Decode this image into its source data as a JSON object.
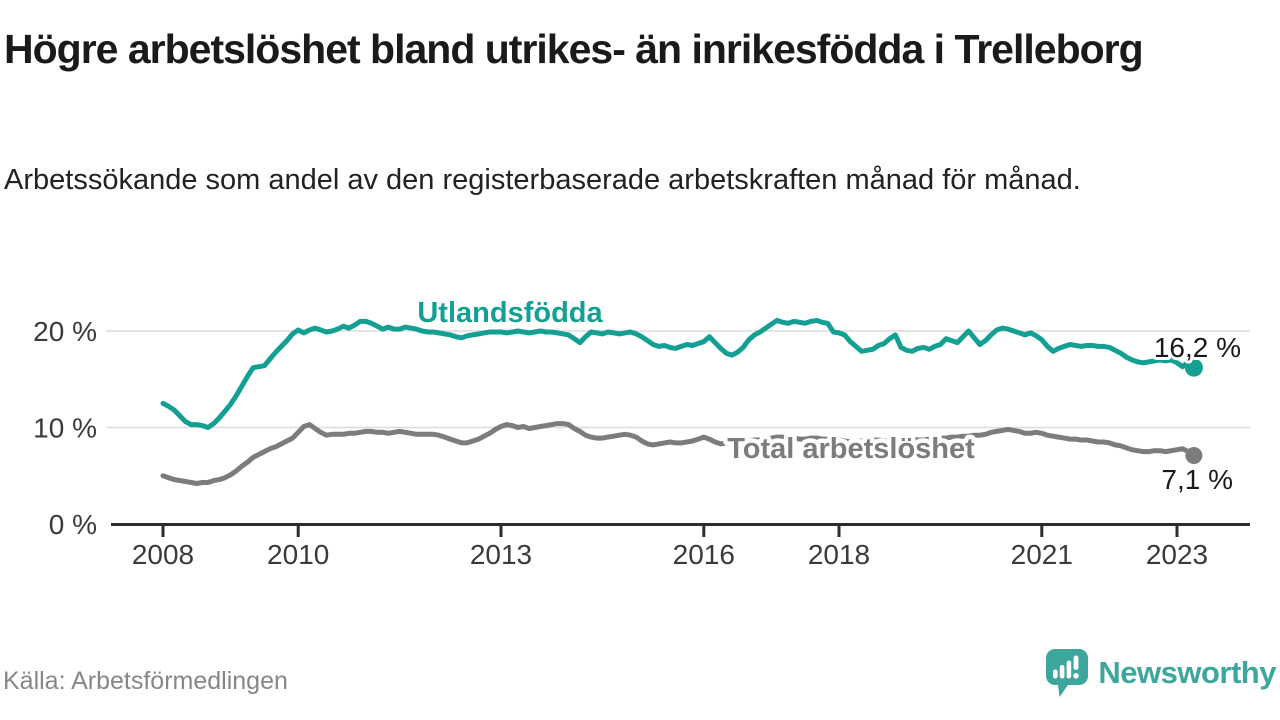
{
  "header": {
    "title": "Högre arbetslöshet bland utrikes- än inrikesfödda i Trelleborg",
    "subtitle": "Arbetssökande som andel av den registerbaserade arbetskraften månad för månad."
  },
  "footer": {
    "source": "Källa: Arbetsförmedlingen",
    "brand": "Newsworthy"
  },
  "colors": {
    "series_teal": "#13a093",
    "series_gray": "#7c7c7c",
    "grid": "#dcdcdc",
    "axis": "#2d2d2d",
    "tick_text": "#3a3a3a",
    "value_text": "#1a1a1a",
    "brand_teal": "#3da69d"
  },
  "chart_data": {
    "type": "line",
    "title": "Högre arbetslöshet bland utrikes- än inrikesfödda i Trelleborg",
    "xlabel": "",
    "ylabel": "Arbetssökande som andel av den registerbaserade arbetskraften",
    "x_start_year": 2008,
    "points_per_year": 12,
    "x_end_label": "2023-04",
    "x_tick_years": [
      2008,
      2010,
      2013,
      2016,
      2018,
      2021,
      2023
    ],
    "y_ticks": [
      {
        "value": 0,
        "label": "0 %"
      },
      {
        "value": 10,
        "label": "10 %"
      },
      {
        "value": 20,
        "label": "20 %"
      }
    ],
    "ylim": [
      0,
      23
    ],
    "grid": "horizontal",
    "legend_position": "inline-labels",
    "series": [
      {
        "name": "Utlandsfödda",
        "color": "#13a093",
        "end_label": "16,2 %",
        "end_value": 16.2,
        "values": [
          12.5,
          12.2,
          11.8,
          11.2,
          10.6,
          10.3,
          10.3,
          10.2,
          10.0,
          10.4,
          11.0,
          11.7,
          12.4,
          13.3,
          14.3,
          15.3,
          16.2,
          16.3,
          16.4,
          17.1,
          17.8,
          18.4,
          19.0,
          19.7,
          20.1,
          19.8,
          20.1,
          20.3,
          20.1,
          19.9,
          20.0,
          20.2,
          20.5,
          20.3,
          20.6,
          21.0,
          21.0,
          20.8,
          20.5,
          20.2,
          20.4,
          20.2,
          20.2,
          20.4,
          20.3,
          20.2,
          20.0,
          19.9,
          19.9,
          19.8,
          19.7,
          19.6,
          19.4,
          19.3,
          19.5,
          19.6,
          19.7,
          19.8,
          19.9,
          19.9,
          19.9,
          19.8,
          19.9,
          20.0,
          19.9,
          19.8,
          19.9,
          20.0,
          19.9,
          19.9,
          19.8,
          19.7,
          19.6,
          19.2,
          18.8,
          19.4,
          19.9,
          19.8,
          19.7,
          19.9,
          19.8,
          19.7,
          19.8,
          19.9,
          19.7,
          19.4,
          19.0,
          18.6,
          18.4,
          18.5,
          18.3,
          18.2,
          18.4,
          18.6,
          18.5,
          18.7,
          18.9,
          19.4,
          18.8,
          18.2,
          17.7,
          17.5,
          17.8,
          18.3,
          19.1,
          19.6,
          19.9,
          20.3,
          20.7,
          21.1,
          20.9,
          20.8,
          21.0,
          20.9,
          20.8,
          21.0,
          21.1,
          20.9,
          20.8,
          19.9,
          19.8,
          19.6,
          18.9,
          18.4,
          17.9,
          18.0,
          18.1,
          18.5,
          18.7,
          19.2,
          19.6,
          18.3,
          18.0,
          17.9,
          18.2,
          18.3,
          18.1,
          18.4,
          18.6,
          19.2,
          19.0,
          18.8,
          19.4,
          20.0,
          19.3,
          18.6,
          19.0,
          19.6,
          20.1,
          20.3,
          20.2,
          20.0,
          19.8,
          19.6,
          19.8,
          19.5,
          19.1,
          18.4,
          17.9,
          18.2,
          18.4,
          18.6,
          18.5,
          18.4,
          18.5,
          18.5,
          18.4,
          18.4,
          18.3,
          18.0,
          17.7,
          17.3,
          17.0,
          16.8,
          16.7,
          16.8,
          16.9,
          17.0,
          16.9,
          17.0,
          16.7,
          16.3,
          16.8,
          16.2
        ]
      },
      {
        "name": "Total arbetslöshet",
        "color": "#7c7c7c",
        "end_label": "7,1 %",
        "end_value": 7.1,
        "values": [
          5.0,
          4.8,
          4.6,
          4.5,
          4.4,
          4.3,
          4.2,
          4.3,
          4.3,
          4.5,
          4.6,
          4.8,
          5.1,
          5.5,
          6.0,
          6.4,
          6.9,
          7.2,
          7.5,
          7.8,
          8.0,
          8.3,
          8.6,
          8.9,
          9.5,
          10.1,
          10.3,
          9.9,
          9.5,
          9.2,
          9.3,
          9.3,
          9.3,
          9.4,
          9.4,
          9.5,
          9.6,
          9.6,
          9.5,
          9.5,
          9.4,
          9.5,
          9.6,
          9.5,
          9.4,
          9.3,
          9.3,
          9.3,
          9.3,
          9.2,
          9.0,
          8.8,
          8.6,
          8.4,
          8.4,
          8.6,
          8.8,
          9.1,
          9.4,
          9.8,
          10.1,
          10.3,
          10.2,
          10.0,
          10.1,
          9.9,
          10.0,
          10.1,
          10.2,
          10.3,
          10.4,
          10.4,
          10.3,
          9.9,
          9.6,
          9.2,
          9.0,
          8.9,
          8.9,
          9.0,
          9.1,
          9.2,
          9.3,
          9.2,
          9.0,
          8.6,
          8.3,
          8.2,
          8.3,
          8.4,
          8.5,
          8.4,
          8.4,
          8.5,
          8.6,
          8.8,
          9.0,
          8.8,
          8.5,
          8.3,
          8.4,
          8.5,
          8.7,
          8.6,
          8.6,
          8.7,
          8.7,
          8.8,
          8.9,
          9.0,
          9.0,
          8.9,
          8.9,
          8.8,
          8.8,
          8.9,
          8.9,
          8.8,
          8.8,
          8.7,
          8.7,
          8.6,
          8.5,
          8.5,
          8.6,
          8.6,
          8.7,
          8.7,
          8.6,
          8.6,
          8.7,
          8.7,
          8.8,
          8.8,
          8.7,
          8.7,
          8.8,
          8.8,
          8.9,
          8.9,
          9.0,
          9.0,
          9.1,
          9.1,
          9.2,
          9.2,
          9.3,
          9.5,
          9.6,
          9.7,
          9.8,
          9.7,
          9.6,
          9.4,
          9.4,
          9.5,
          9.4,
          9.2,
          9.1,
          9.0,
          8.9,
          8.8,
          8.8,
          8.7,
          8.7,
          8.6,
          8.5,
          8.5,
          8.4,
          8.2,
          8.1,
          7.9,
          7.7,
          7.6,
          7.5,
          7.5,
          7.6,
          7.6,
          7.5,
          7.6,
          7.7,
          7.8,
          7.5,
          7.1
        ]
      }
    ]
  }
}
